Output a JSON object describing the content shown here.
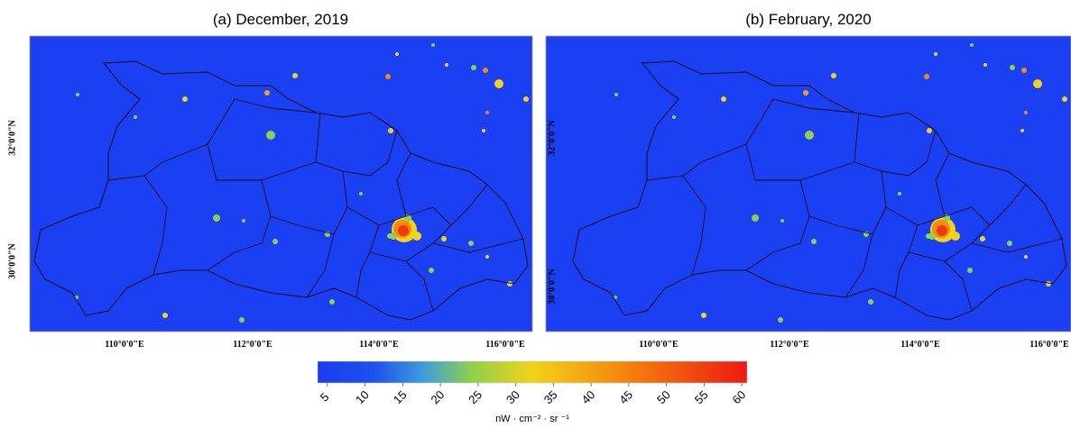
{
  "panels": [
    {
      "title": "(a) December, 2019",
      "x_ticks": [
        "110°0'0\"E",
        "112°0'0\"E",
        "114°0'0\"E",
        "116°0'0\"E"
      ],
      "y_ticks": [
        "32°0'0\"N",
        "30°0'0\"N"
      ]
    },
    {
      "title": "(b) February, 2020",
      "x_ticks": [
        "110°0'0\"E",
        "112°0'0\"E",
        "114°0'0\"E",
        "116°0'0\"E"
      ],
      "y_ticks": [
        "32°0'0\"N",
        "30°0'0\"N"
      ]
    }
  ],
  "colorbar": {
    "lim": [
      3.7,
      60.7
    ],
    "ticks": [
      5,
      10,
      15,
      20,
      25,
      30,
      35,
      40,
      45,
      50,
      55,
      60
    ],
    "unit": "nW · cm⁻² · sr ⁻¹"
  }
}
